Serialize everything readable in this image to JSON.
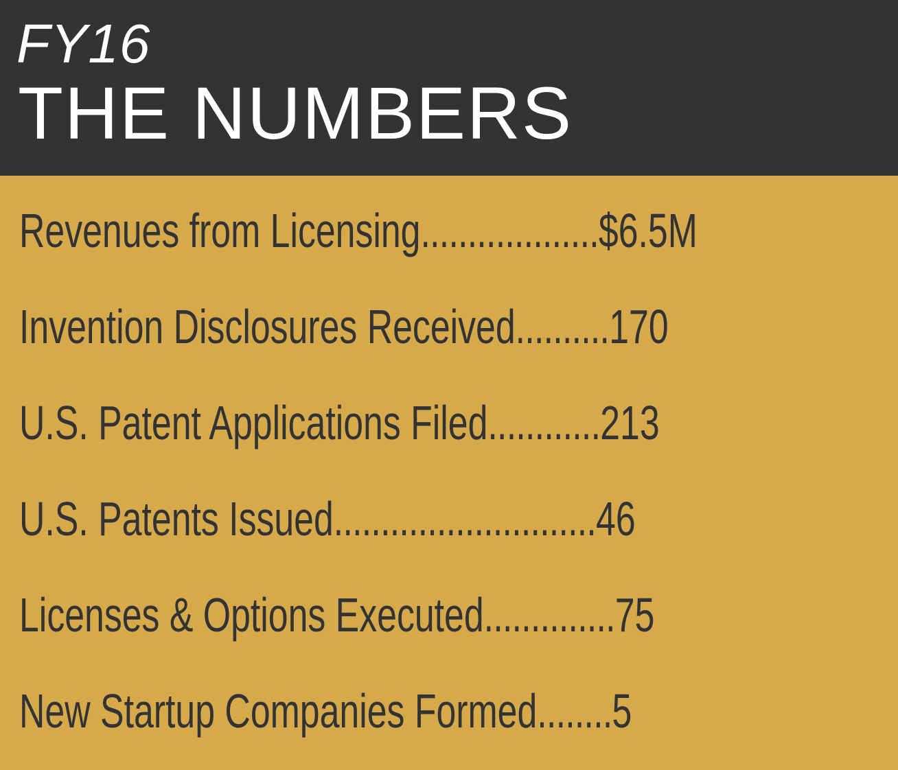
{
  "header": {
    "subtitle": "FY16",
    "title": "THE NUMBERS"
  },
  "stats": [
    {
      "label": "Revenues from Licensing",
      "leader": "...................",
      "value": "$6.5M"
    },
    {
      "label": "Invention Disclosures Received",
      "leader": "..........",
      "value": "170"
    },
    {
      "label": "U.S. Patent Applications Filed",
      "leader": "............",
      "value": "213"
    },
    {
      "label": "U.S. Patents Issued",
      "leader": "............................",
      "value": "46"
    },
    {
      "label": "Licenses & Options Executed",
      "leader": "..............",
      "value": "75"
    },
    {
      "label": "New Startup Companies Formed",
      "leader": "........",
      "value": "5"
    }
  ],
  "colors": {
    "header_bg": "#333333",
    "body_bg": "#d6a94b",
    "header_text": "#ffffff",
    "body_text": "#333333"
  }
}
